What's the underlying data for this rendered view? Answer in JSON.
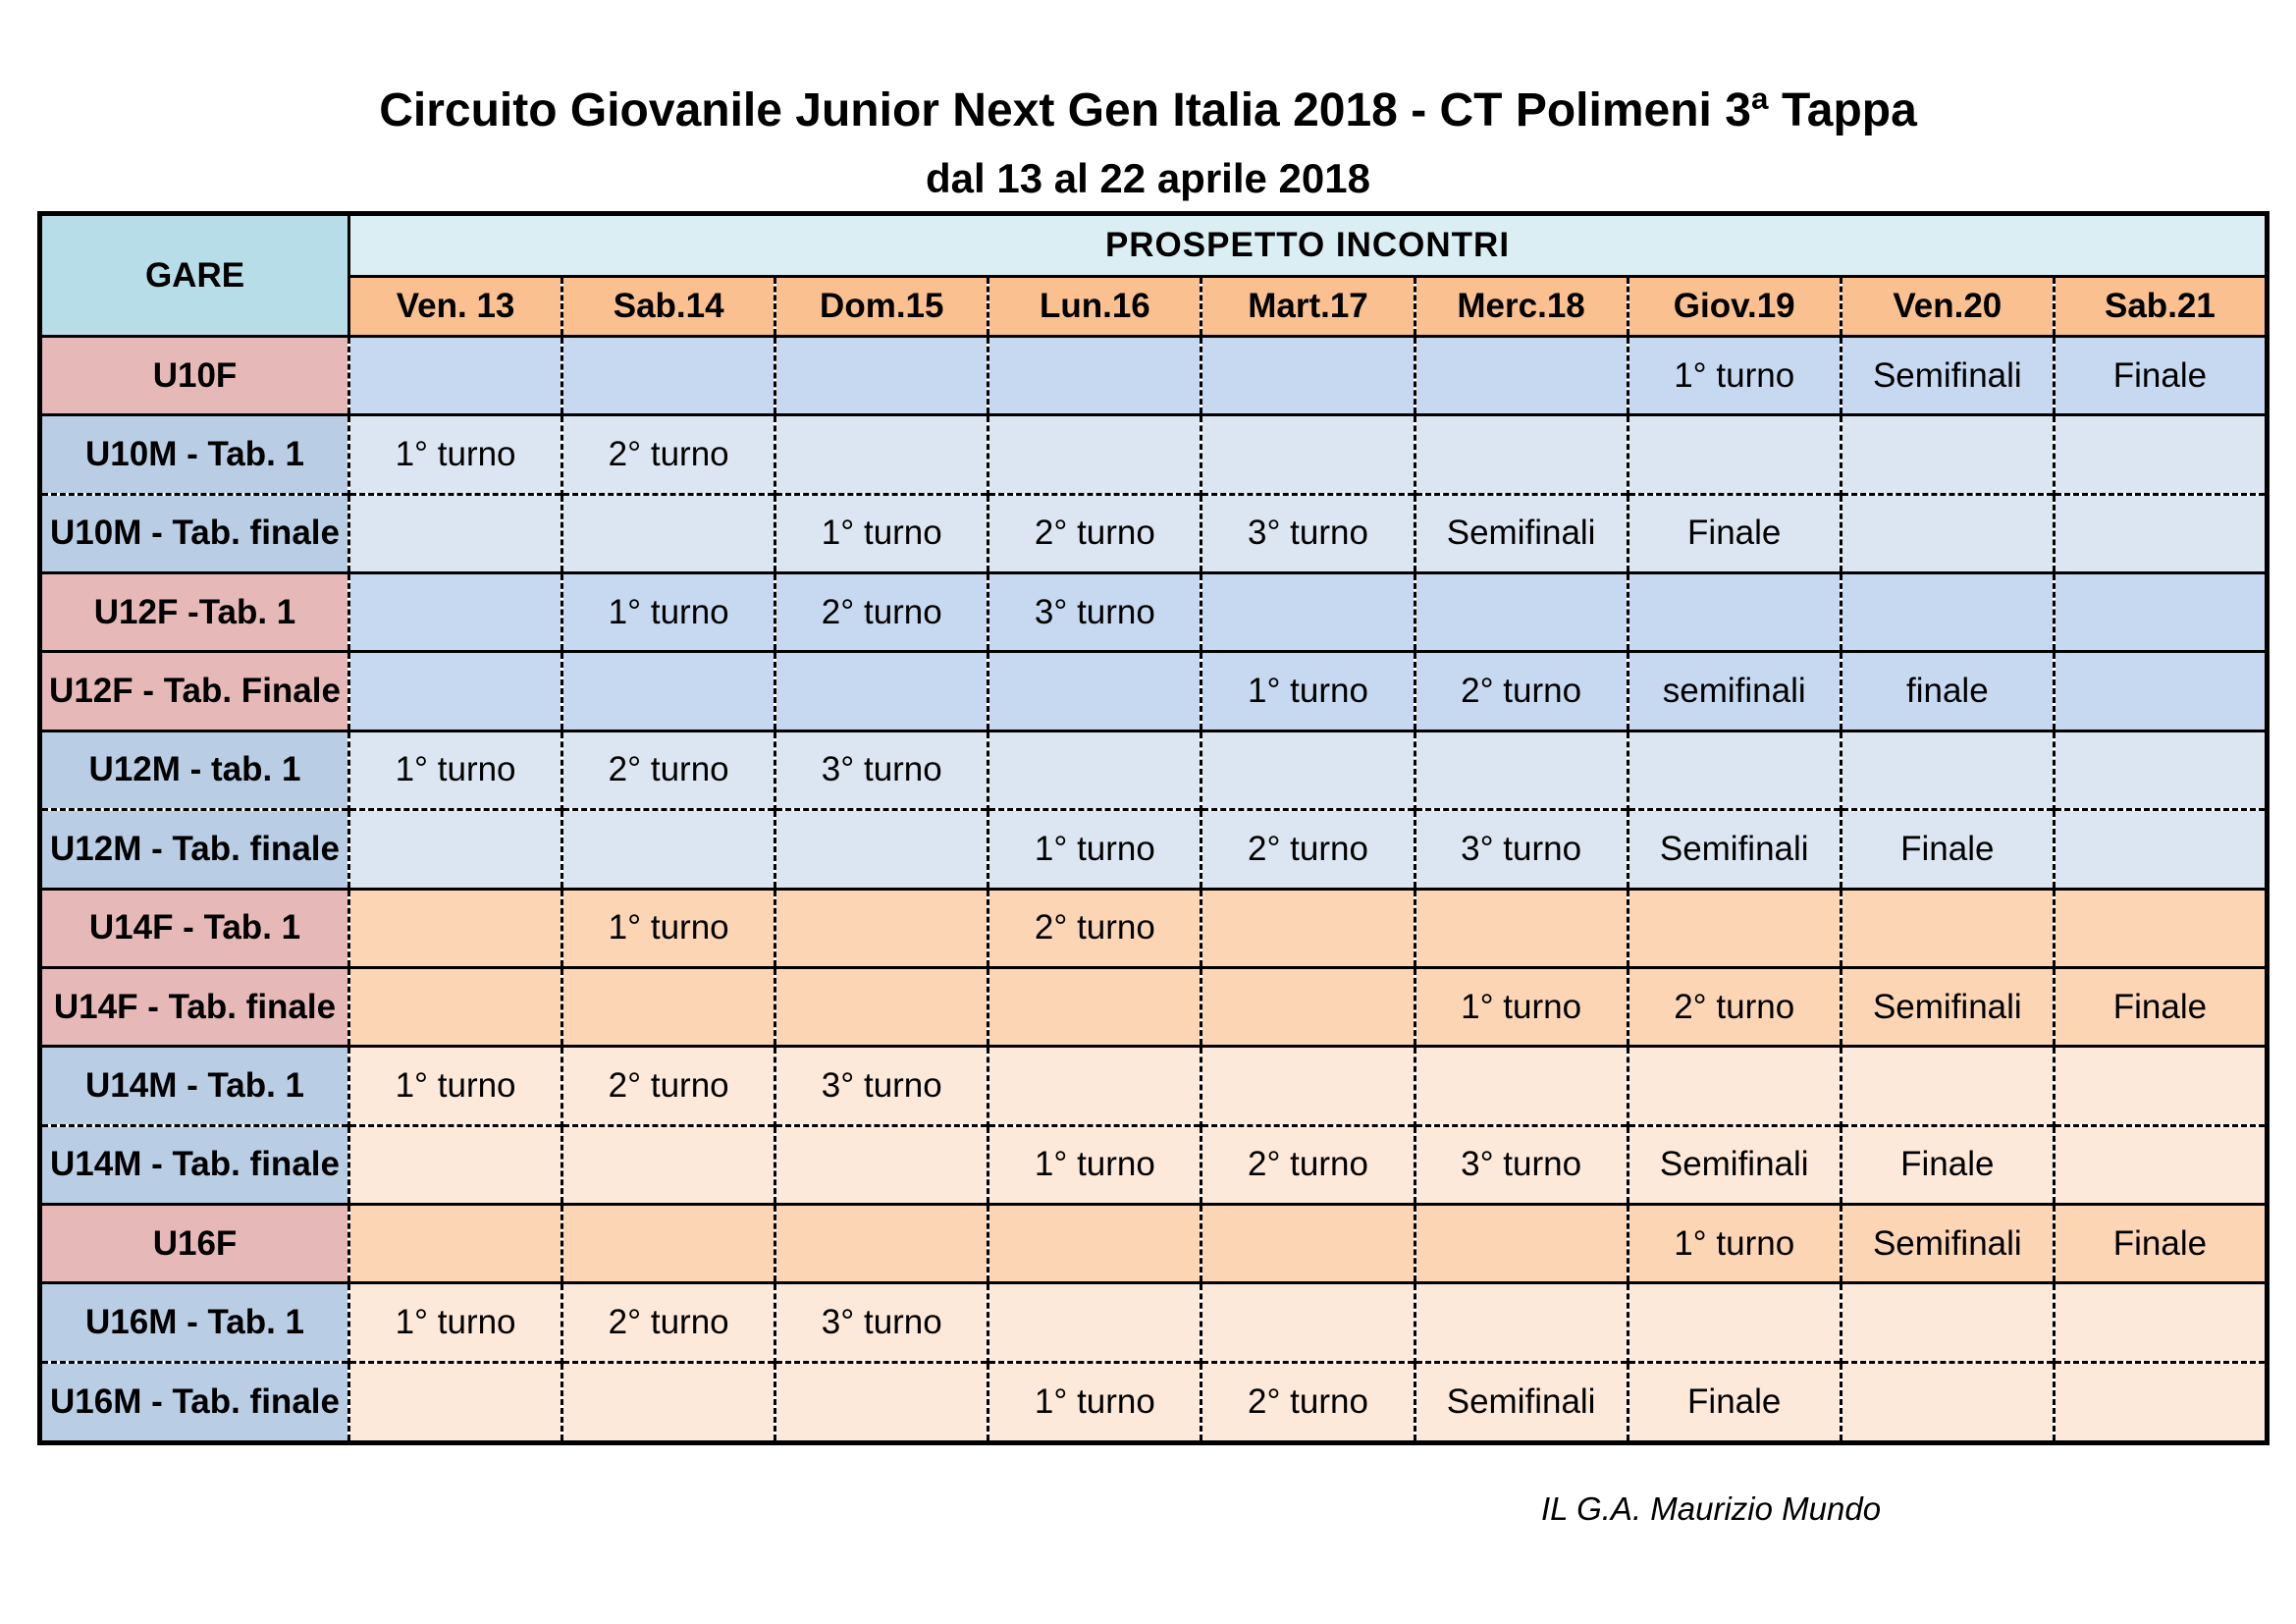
{
  "header": {
    "title": "Circuito Giovanile Junior Next Gen Italia 2018 - CT Polimeni 3ª Tappa",
    "subtitle": "dal 13 al 22 aprile 2018"
  },
  "table": {
    "gare_label": "GARE",
    "prospetto_label": "PROSPETTO  INCONTRI",
    "days": [
      "Ven. 13",
      "Sab.14",
      "Dom.15",
      "Lun.16",
      "Mart.17",
      "Merc.18",
      "Giov.19",
      "Ven.20",
      "Sab.21"
    ],
    "rows": [
      {
        "label": "U10F",
        "cells": [
          "",
          "",
          "",
          "",
          "",
          "",
          "1° turno",
          "Semifinali",
          "Finale"
        ]
      },
      {
        "label": "U10M - Tab. 1",
        "cells": [
          "1° turno",
          "2° turno",
          "",
          "",
          "",
          "",
          "",
          "",
          ""
        ]
      },
      {
        "label": "U10M - Tab. finale",
        "cells": [
          "",
          "",
          "1° turno",
          "2° turno",
          "3° turno",
          "Semifinali",
          "Finale",
          "",
          ""
        ]
      },
      {
        "label": "U12F  -Tab. 1",
        "cells": [
          "",
          "1° turno",
          "2° turno",
          "3° turno",
          "",
          "",
          "",
          "",
          ""
        ]
      },
      {
        "label": "U12F - Tab. Finale",
        "cells": [
          "",
          "",
          "",
          "",
          "1° turno",
          "2° turno",
          "semifinali",
          "finale",
          ""
        ]
      },
      {
        "label": "U12M - tab. 1",
        "cells": [
          "1° turno",
          "2° turno",
          "3° turno",
          "",
          "",
          "",
          "",
          "",
          ""
        ]
      },
      {
        "label": "U12M - Tab. finale",
        "cells": [
          "",
          "",
          "",
          "1° turno",
          "2° turno",
          "3° turno",
          "Semifinali",
          "Finale",
          ""
        ]
      },
      {
        "label": "U14F - Tab. 1",
        "cells": [
          "",
          "1° turno",
          "",
          "2° turno",
          "",
          "",
          "",
          "",
          ""
        ]
      },
      {
        "label": "U14F - Tab. finale",
        "cells": [
          "",
          "",
          "",
          "",
          "",
          "1° turno",
          "2° turno",
          "Semifinali",
          "Finale"
        ]
      },
      {
        "label": "U14M - Tab. 1",
        "cells": [
          "1° turno",
          "2° turno",
          "3° turno",
          "",
          "",
          "",
          "",
          "",
          ""
        ]
      },
      {
        "label": "U14M - Tab. finale",
        "cells": [
          "",
          "",
          "",
          "1° turno",
          "2° turno",
          "3° turno",
          "Semifinali",
          "Finale",
          ""
        ]
      },
      {
        "label": "U16F",
        "cells": [
          "",
          "",
          "",
          "",
          "",
          "",
          "1° turno",
          "Semifinali",
          "Finale"
        ]
      },
      {
        "label": "U16M - Tab. 1",
        "cells": [
          "1° turno",
          "2° turno",
          "3° turno",
          "",
          "",
          "",
          "",
          "",
          ""
        ]
      },
      {
        "label": "U16M - Tab. finale",
        "cells": [
          "",
          "",
          "",
          "1° turno",
          "2° turno",
          "Semifinali",
          "Finale",
          "",
          ""
        ]
      }
    ]
  },
  "footer": {
    "signature": "IL G.A. Maurizio Mundo"
  },
  "colors": {
    "header_gare": "#b7dde8",
    "header_prospetto": "#daeef3",
    "header_days": "#fac090",
    "label_female": "#e6b9b8",
    "label_male": "#b9cde5",
    "cells_u10_u12_female": "#c6d9f1",
    "cells_u10_u12_male": "#dce6f2",
    "cells_u14_u16_female": "#fcd5b5",
    "cells_u14_u16_male": "#fde9d9"
  }
}
